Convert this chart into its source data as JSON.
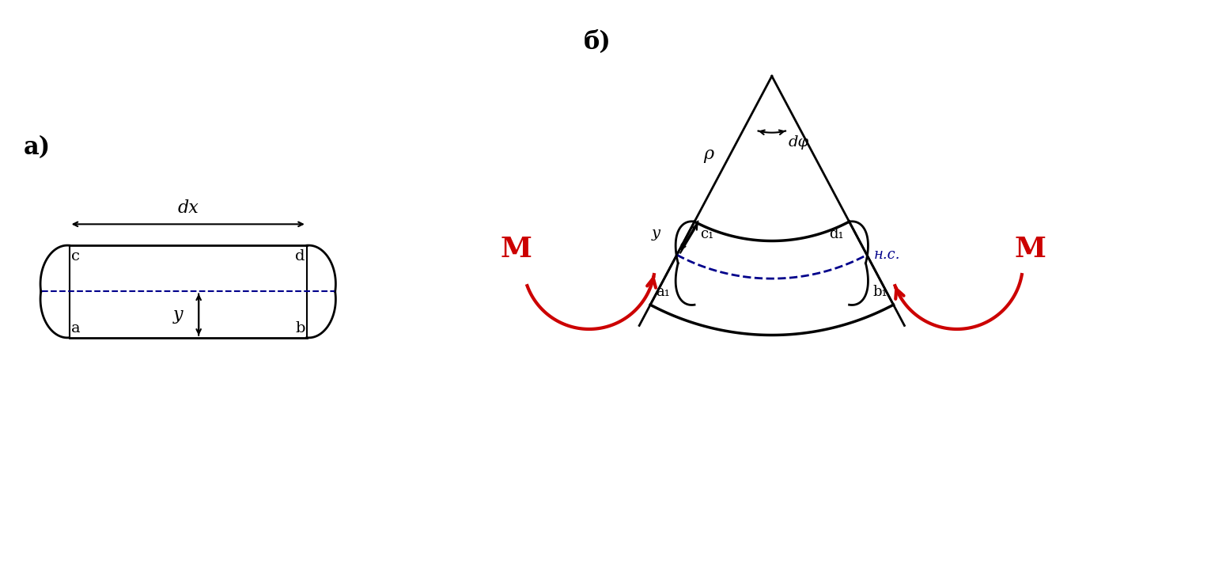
{
  "bg_color": "#ffffff",
  "label_a": "a)",
  "label_b": "б)",
  "label_dx": "dx",
  "label_rho": "ρ",
  "label_dphi": "dφ",
  "label_M": "M",
  "label_nc": "н.c.",
  "label_y": "y",
  "label_c": "c",
  "label_d": "d",
  "label_a_pt": "a",
  "label_b_pt": "b",
  "label_c1": "c₁",
  "label_d1": "d₁",
  "label_a1": "a₁",
  "label_b1": "b₁",
  "black": "#000000",
  "blue": "#00008B",
  "red": "#CC0000"
}
